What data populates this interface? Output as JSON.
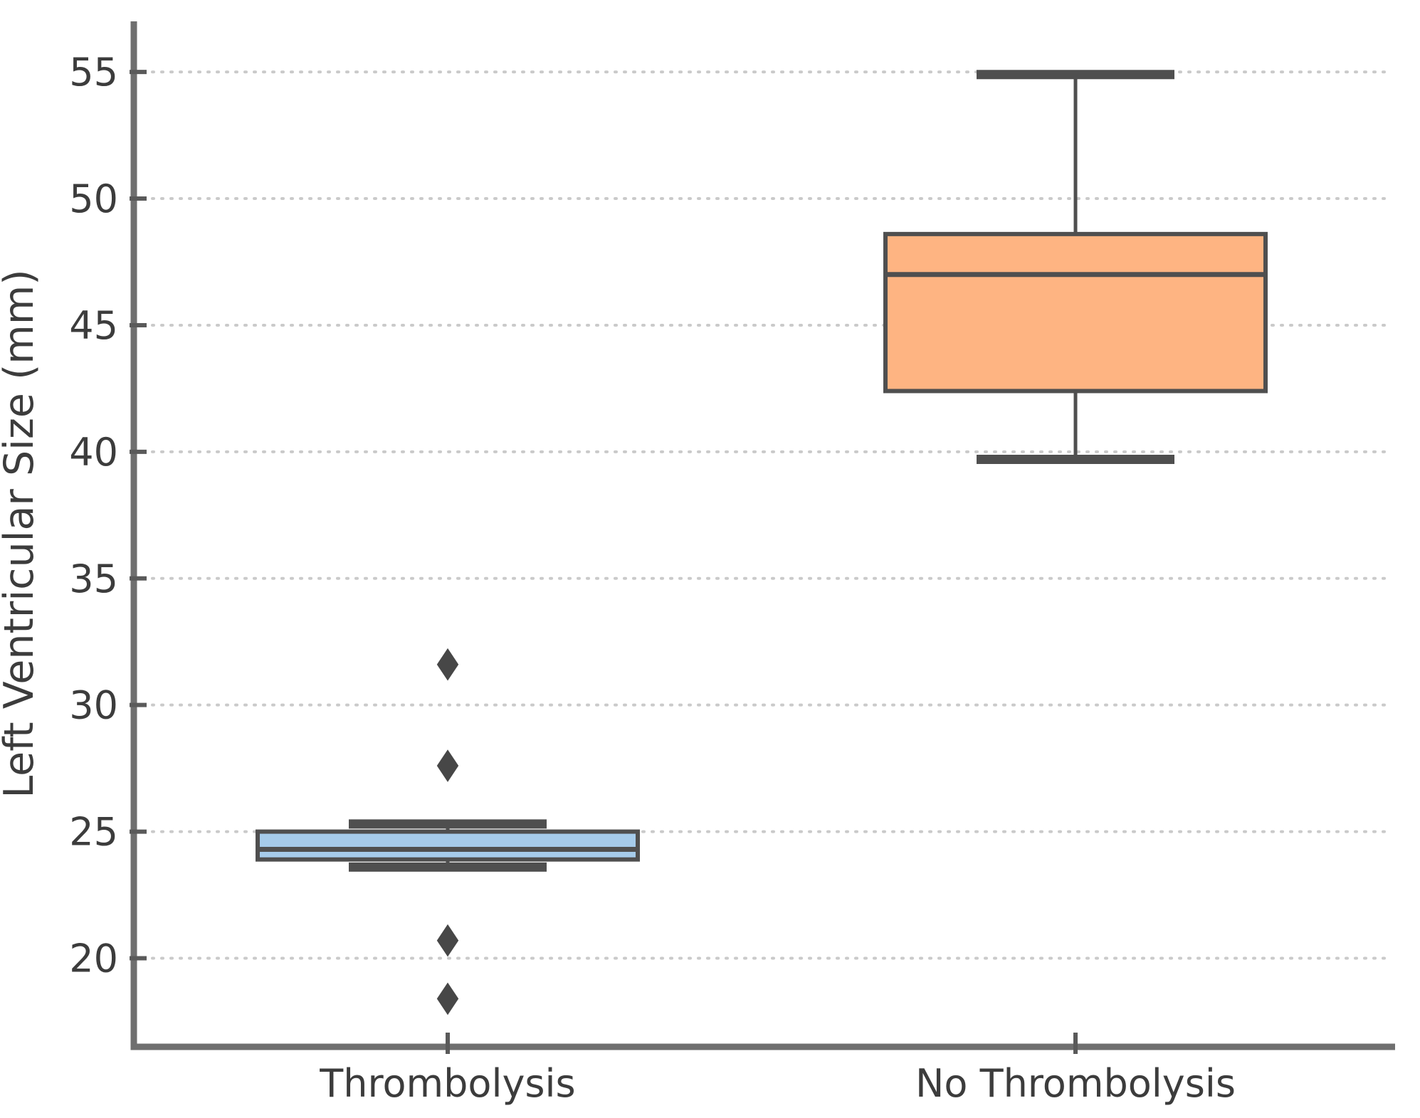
{
  "chart_data": {
    "type": "box",
    "title": "",
    "xlabel": "",
    "ylabel": "Left Ventricular Size (mm)",
    "categories": [
      "Thrombolysis",
      "No Thrombolysis"
    ],
    "series": [
      {
        "name": "Thrombolysis",
        "whisker_low": 23.6,
        "q1": 23.9,
        "median": 24.3,
        "q3": 25.0,
        "whisker_high": 25.3,
        "outliers": [
          31.6,
          27.6,
          20.7,
          18.4
        ],
        "fill": "#a6cbea"
      },
      {
        "name": "No Thrombolysis",
        "whisker_low": 39.7,
        "q1": 42.4,
        "median": 47.0,
        "q3": 48.6,
        "whisker_high": 54.9,
        "outliers": [],
        "fill": "#feb482"
      }
    ],
    "yticks": [
      20,
      25,
      30,
      35,
      40,
      45,
      50,
      55
    ],
    "ylim": [
      16.5,
      57.0
    ],
    "grid": "horizontal-dotted",
    "legend": "none",
    "colors": {
      "box_line": "#4f4f4f",
      "flier": "#474747",
      "grid": "#cacaca",
      "spine": "#6f6f6f",
      "tick": "#5a5a5a",
      "text": "#3c3c3c"
    }
  }
}
